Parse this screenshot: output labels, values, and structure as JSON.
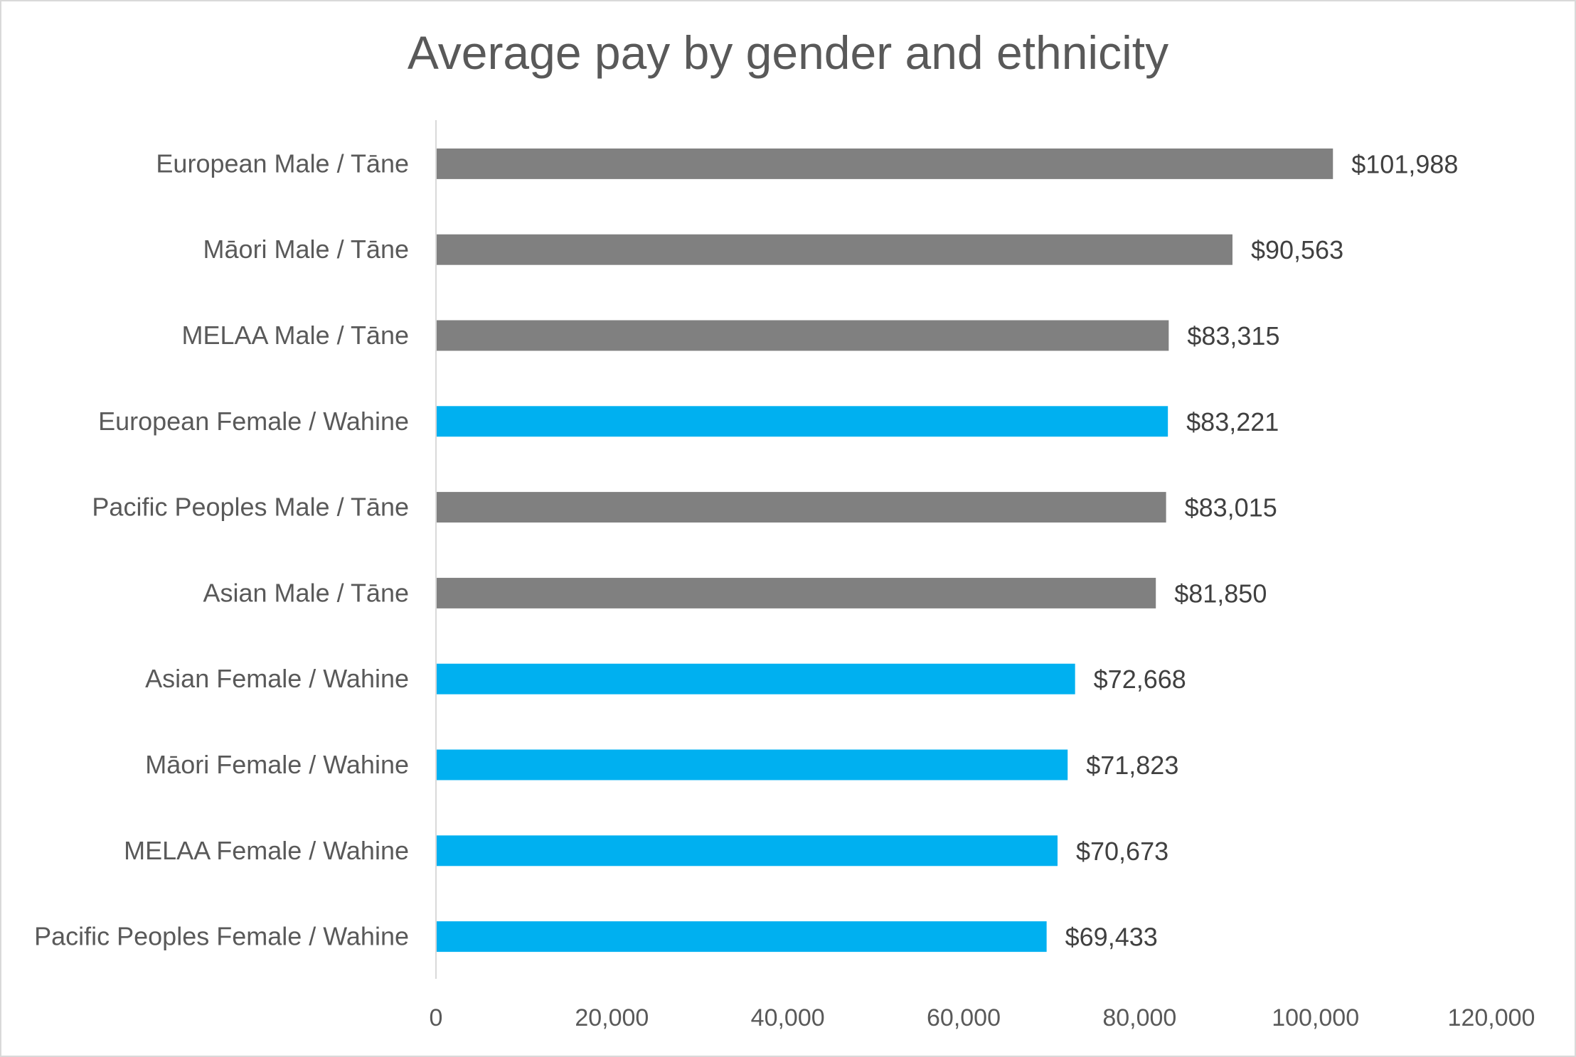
{
  "chart_data": {
    "type": "bar",
    "orientation": "horizontal",
    "title": "Average pay by gender and ethnicity",
    "xlabel": "",
    "ylabel": "",
    "xlim": [
      0,
      120000
    ],
    "grid": false,
    "legend": "none",
    "colors": {
      "male": "#808080",
      "female": "#00b0f0"
    },
    "tick_labels": [
      "0",
      "20,000",
      "40,000",
      "60,000",
      "80,000",
      "100,000",
      "120,000"
    ],
    "ticks": [
      0,
      20000,
      40000,
      60000,
      80000,
      100000,
      120000
    ],
    "categories": [
      "European Male / Tāne",
      "Māori Male / Tāne",
      "MELAA Male / Tāne",
      "European Female / Wahine",
      "Pacific Peoples Male / Tāne",
      "Asian Male / Tāne",
      "Asian Female / Wahine",
      "Māori Female / Wahine",
      "MELAA Female / Wahine",
      "Pacific Peoples Female / Wahine"
    ],
    "values": [
      101988,
      90563,
      83315,
      83221,
      83015,
      81850,
      72668,
      71823,
      70673,
      69433
    ],
    "value_labels": [
      "$101,988",
      "$90,563",
      "$83,315",
      "$83,221",
      "$83,015",
      "$81,850",
      "$72,668",
      "$71,823",
      "$70,673",
      "$69,433"
    ],
    "gender": [
      "male",
      "male",
      "male",
      "female",
      "male",
      "male",
      "female",
      "female",
      "female",
      "female"
    ]
  }
}
